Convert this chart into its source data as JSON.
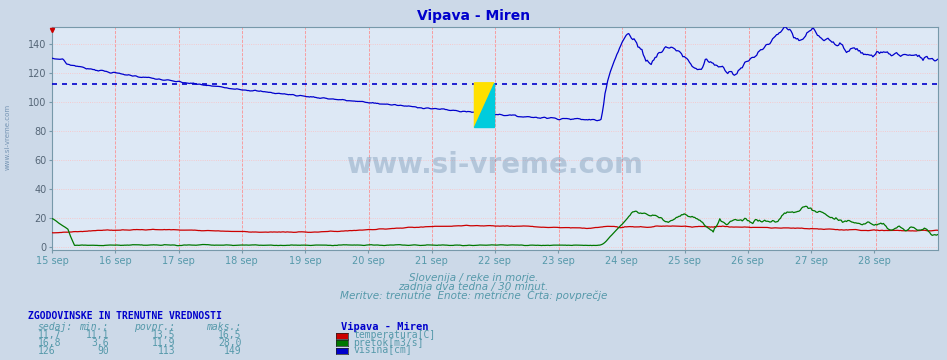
{
  "title": "Vipava - Miren",
  "title_color": "#0000cc",
  "bg_color": "#ccd9e8",
  "plot_bg_color": "#dde8f5",
  "grid_color_v": "#ff8888",
  "grid_color_h": "#ffbbbb",
  "avg_line_color": "#0000cc",
  "avg_value": 113,
  "xlabel_color": "#5599aa",
  "yticks": [
    0,
    20,
    40,
    60,
    80,
    100,
    120,
    140
  ],
  "ylim_min": -2,
  "ylim_max": 152,
  "xticklabels": [
    "15 sep",
    "16 sep",
    "17 sep",
    "18 sep",
    "19 sep",
    "20 sep",
    "21 sep",
    "22 sep",
    "23 sep",
    "24 sep",
    "25 sep",
    "26 sep",
    "27 sep",
    "28 sep"
  ],
  "watermark": "www.si-vreme.com",
  "subtitle1": "Slovenija / reke in morje.",
  "subtitle2": "zadnja dva tedna / 30 minut.",
  "subtitle3": "Meritve: trenutne  Enote: metrične  Črta: povprečje",
  "temp_color": "#cc0000",
  "flow_color": "#007700",
  "height_color": "#0000cc",
  "legend_title": "Vipava - Miren",
  "table_headers": [
    "sedaj:",
    "min.:",
    "povpr.:",
    "maks.:"
  ],
  "table_rows": [
    [
      "11,7",
      "11,1",
      "13,5",
      "16,5",
      "temperatura[C]",
      "#cc0000"
    ],
    [
      "16,8",
      "3,6",
      "11,9",
      "28,0",
      "pretok[m3/s]",
      "#007700"
    ],
    [
      "126",
      "90",
      "113",
      "149",
      "višina[cm]",
      "#0000cc"
    ]
  ],
  "table_section_title": "ZGODOVINSKE IN TRENUTNE VREDNOSTI",
  "sidebar_text": "www.si-vreme.com"
}
